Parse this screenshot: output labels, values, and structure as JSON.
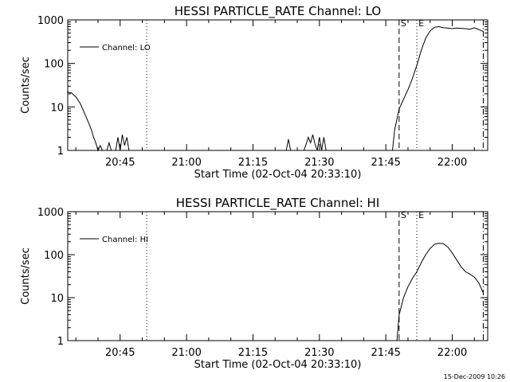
{
  "timestamp": "15-Dec-2009 10:26",
  "colors": {
    "foreground": "#000000",
    "background": "#ffffff"
  },
  "chart_data": [
    {
      "type": "line",
      "title": "HESSI PARTICLE_RATE Channel: LO",
      "xlabel": "Start Time (02-Oct-04 20:33:10)",
      "ylabel": "Counts/sec",
      "yscale": "log",
      "ylim": [
        1,
        1000
      ],
      "xlim": [
        "20:33:10",
        "22:08:00"
      ],
      "x_tick_labels": [
        "20:45",
        "21:00",
        "21:15",
        "21:30",
        "21:45",
        "22:00"
      ],
      "y_tick_labels": [
        "1",
        "10",
        "100",
        "1000"
      ],
      "legend": {
        "entries": [
          "Channel: LO"
        ],
        "placement": "top-left",
        "position": "top-left"
      },
      "markers": [
        {
          "label": "",
          "time": "20:51",
          "style": "dotted"
        },
        {
          "label": "S",
          "time": "21:48",
          "style": "dashed"
        },
        {
          "label": "E",
          "time": "21:52",
          "style": "dotted"
        },
        {
          "label": "",
          "time": "22:07",
          "style": "dashdot"
        }
      ],
      "series": [
        {
          "name": "Channel: LO",
          "x": [
            "20:33",
            "20:34",
            "20:35",
            "20:36",
            "20:37",
            "20:38",
            "20:38.5",
            "20:39",
            "20:39.5",
            "20:40",
            "20:40.5",
            "20:41",
            "20:41.5",
            "20:42",
            "20:42.5",
            "20:43",
            "20:43.5",
            "20:44",
            "20:44.5",
            "20:45",
            "20:45.5",
            "20:46",
            "20:46.5",
            "20:47",
            "21:22.5",
            "21:23",
            "21:23.5",
            "21:26.5",
            "21:27",
            "21:27.5",
            "21:28",
            "21:28.5",
            "21:29",
            "21:29.5",
            "21:30",
            "21:30.5",
            "21:31",
            "21:31.5",
            "21:32",
            "21:46.5",
            "21:47",
            "21:48",
            "21:49",
            "21:50",
            "21:51",
            "21:52",
            "21:53",
            "21:54",
            "21:55",
            "21:56",
            "21:57",
            "21:58",
            "21:59",
            "22:00",
            "22:01",
            "22:02",
            "22:03",
            "22:04",
            "22:05",
            "22:06",
            "22:07"
          ],
          "y": [
            22,
            21,
            17,
            12,
            7,
            4,
            3,
            2,
            1.5,
            1,
            1.3,
            1,
            1,
            1,
            1.5,
            1,
            1,
            1,
            2,
            1,
            2.3,
            1.3,
            2,
            1,
            1,
            1.8,
            1,
            1,
            1.4,
            2,
            1.5,
            2.3,
            1.4,
            1,
            2,
            1,
            2,
            1,
            1,
            1,
            3,
            9,
            15,
            25,
            45,
            90,
            200,
            380,
            560,
            680,
            700,
            660,
            650,
            630,
            650,
            640,
            630,
            610,
            660,
            600,
            540
          ]
        }
      ]
    },
    {
      "type": "line",
      "title": "HESSI PARTICLE_RATE Channel: HI",
      "xlabel": "Start Time (02-Oct-04 20:33:10)",
      "ylabel": "Counts/sec",
      "yscale": "log",
      "ylim": [
        1,
        1000
      ],
      "xlim": [
        "20:33:10",
        "22:08:00"
      ],
      "x_tick_labels": [
        "20:45",
        "21:00",
        "21:15",
        "21:30",
        "21:45",
        "22:00"
      ],
      "y_tick_labels": [
        "1",
        "10",
        "100",
        "1000"
      ],
      "legend": {
        "entries": [
          "Channel: HI"
        ],
        "placement": "top-left",
        "position": "top-left"
      },
      "markers": [
        {
          "label": "",
          "time": "20:51",
          "style": "dotted"
        },
        {
          "label": "S",
          "time": "21:48",
          "style": "dashed"
        },
        {
          "label": "E",
          "time": "21:52",
          "style": "dotted"
        },
        {
          "label": "",
          "time": "22:07",
          "style": "dashdot"
        }
      ],
      "series": [
        {
          "name": "Channel: HI",
          "x": [
            "21:47.5",
            "21:48",
            "21:49",
            "21:50",
            "21:51",
            "21:52",
            "21:53",
            "21:54",
            "21:55",
            "21:56",
            "21:57",
            "21:58",
            "21:59",
            "22:00",
            "22:01",
            "22:02",
            "22:03",
            "22:04",
            "22:05",
            "22:06",
            "22:07"
          ],
          "y": [
            1,
            4,
            10,
            18,
            28,
            40,
            65,
            100,
            140,
            175,
            185,
            180,
            150,
            110,
            75,
            52,
            40,
            35,
            30,
            22,
            13
          ]
        }
      ]
    }
  ]
}
